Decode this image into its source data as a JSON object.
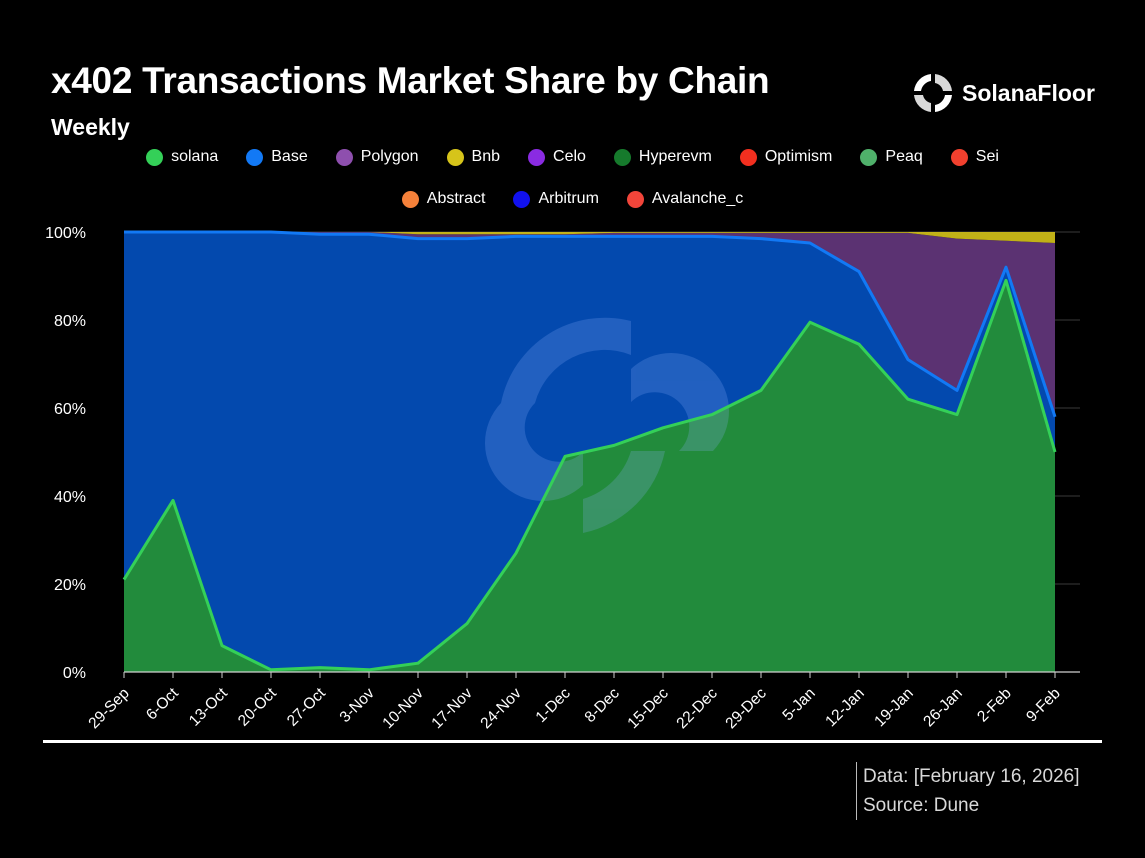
{
  "header": {
    "title": "x402 Transactions Market Share by Chain",
    "subtitle": "Weekly",
    "brand": "SolanaFloor"
  },
  "footer": {
    "data_note": "Data: [February 16, 2026]",
    "source_note": "Source: Dune"
  },
  "colors": {
    "background": "#000000",
    "solana_fill": "#228b3c",
    "solana_line": "#34d058",
    "base_fill": "#0349ae",
    "base_line": "#1279f5",
    "polygon_fill": "#5b3272",
    "bnb_fill": "#d6c41a"
  },
  "chart_data": {
    "type": "area",
    "stacked": true,
    "percent": true,
    "categories": [
      "29-Sep",
      "6-Oct",
      "13-Oct",
      "20-Oct",
      "27-Oct",
      "3-Nov",
      "10-Nov",
      "17-Nov",
      "24-Nov",
      "1-Dec",
      "8-Dec",
      "15-Dec",
      "22-Dec",
      "29-Dec",
      "5-Jan",
      "12-Jan",
      "19-Jan",
      "26-Jan",
      "2-Feb",
      "9-Feb"
    ],
    "series": [
      {
        "name": "solana",
        "color": "#34d058",
        "values": [
          21,
          39,
          6,
          0.5,
          1,
          0.5,
          2,
          11,
          27,
          49,
          51.5,
          55.5,
          58.5,
          64,
          79.5,
          74.5,
          62,
          58.5,
          89,
          50
        ]
      },
      {
        "name": "Base",
        "color": "#1279f5",
        "values": [
          79,
          61,
          94,
          99.5,
          98.5,
          99,
          96.5,
          87.5,
          72,
          50,
          47.5,
          43.5,
          40.5,
          34.5,
          18,
          16.5,
          9,
          5.5,
          3,
          8
        ]
      },
      {
        "name": "Polygon",
        "color": "#8e4fae",
        "values": [
          0,
          0,
          0,
          0,
          0.5,
          0.5,
          1,
          1,
          0.5,
          0.5,
          0.8,
          0.8,
          0.8,
          1.3,
          2.3,
          8.8,
          28.8,
          34.5,
          6,
          39.5
        ]
      },
      {
        "name": "Bnb",
        "color": "#d6c41a",
        "values": [
          0,
          0,
          0,
          0,
          0,
          0,
          0.5,
          0.5,
          0.5,
          0.5,
          0.2,
          0.2,
          0.2,
          0.2,
          0.2,
          0.2,
          0.2,
          1.5,
          2,
          2.5
        ]
      },
      {
        "name": "Celo",
        "color": "#8a2be2",
        "values": [
          0,
          0,
          0,
          0,
          0,
          0,
          0,
          0,
          0,
          0,
          0,
          0,
          0,
          0,
          0,
          0,
          0,
          0,
          0,
          0
        ]
      },
      {
        "name": "Hyperevm",
        "color": "#167a2c",
        "values": [
          0,
          0,
          0,
          0,
          0,
          0,
          0,
          0,
          0,
          0,
          0,
          0,
          0,
          0,
          0,
          0,
          0,
          0,
          0,
          0
        ]
      },
      {
        "name": "Optimism",
        "color": "#f22f1f",
        "values": [
          0,
          0,
          0,
          0,
          0,
          0,
          0,
          0,
          0,
          0,
          0,
          0,
          0,
          0,
          0,
          0,
          0,
          0,
          0,
          0
        ]
      },
      {
        "name": "Peaq",
        "color": "#4fb06a",
        "values": [
          0,
          0,
          0,
          0,
          0,
          0,
          0,
          0,
          0,
          0,
          0,
          0,
          0,
          0,
          0,
          0,
          0,
          0,
          0,
          0
        ]
      },
      {
        "name": "Sei",
        "color": "#f1402e",
        "values": [
          0,
          0,
          0,
          0,
          0,
          0,
          0,
          0,
          0,
          0,
          0,
          0,
          0,
          0,
          0,
          0,
          0,
          0,
          0,
          0
        ]
      },
      {
        "name": "Abstract",
        "color": "#f5813a",
        "values": [
          0,
          0,
          0,
          0,
          0,
          0,
          0,
          0,
          0,
          0,
          0,
          0,
          0,
          0,
          0,
          0,
          0,
          0,
          0,
          0
        ]
      },
      {
        "name": "Arbitrum",
        "color": "#1111ee",
        "values": [
          0,
          0,
          0,
          0,
          0,
          0,
          0,
          0,
          0,
          0,
          0,
          0,
          0,
          0,
          0,
          0,
          0,
          0,
          0,
          0
        ]
      },
      {
        "name": "Avalanche_c",
        "color": "#f1453a",
        "values": [
          0,
          0,
          0,
          0,
          0,
          0,
          0,
          0,
          0,
          0,
          0,
          0,
          0,
          0,
          0,
          0,
          0,
          0,
          0,
          0
        ]
      }
    ],
    "ylim": [
      0,
      100
    ],
    "yticks": [
      "0%",
      "20%",
      "40%",
      "60%",
      "80%",
      "100%"
    ],
    "grid": true,
    "legend_position": "top"
  }
}
